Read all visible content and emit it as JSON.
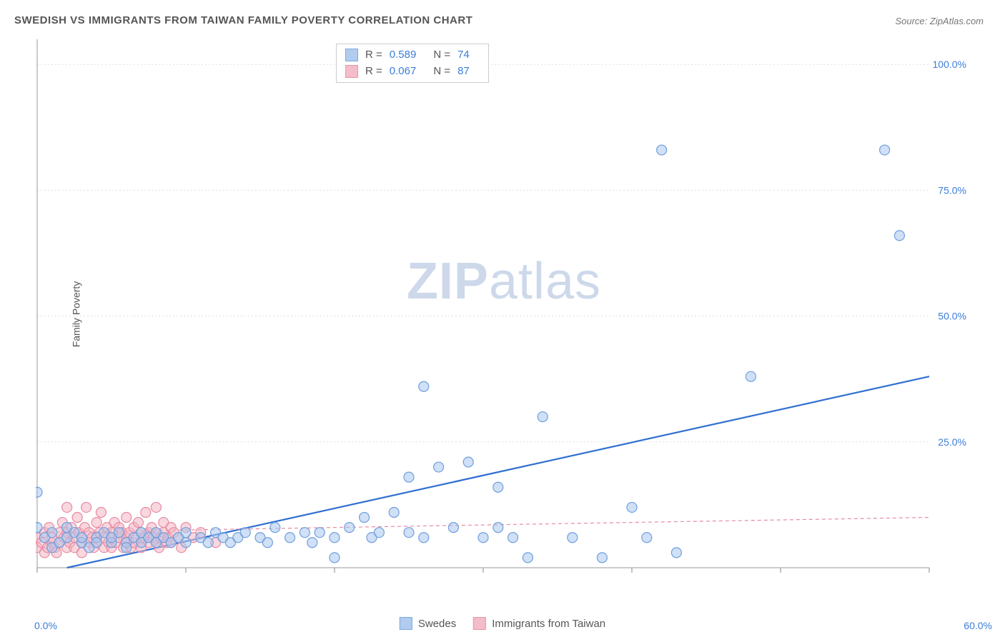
{
  "title": "SWEDISH VS IMMIGRANTS FROM TAIWAN FAMILY POVERTY CORRELATION CHART",
  "source": "Source: ZipAtlas.com",
  "watermark_bold": "ZIP",
  "watermark_light": "atlas",
  "y_axis_label": "Family Poverty",
  "chart": {
    "type": "scatter",
    "xlim": [
      0,
      60
    ],
    "ylim": [
      0,
      105
    ],
    "x_ticks": [
      0,
      10,
      20,
      30,
      40,
      50,
      60
    ],
    "y_gridlines": [
      25,
      50,
      75,
      100
    ],
    "y_tick_labels": [
      "25.0%",
      "50.0%",
      "75.0%",
      "100.0%"
    ],
    "x_start_label": "0.0%",
    "x_end_label": "60.0%",
    "background_color": "#ffffff",
    "grid_color": "#dddddd",
    "axis_color": "#999999",
    "tick_color": "#888888",
    "y_label_color": "#3b7dd8",
    "marker_radius": 7,
    "marker_stroke_width": 1.2,
    "series": [
      {
        "name": "Swedes",
        "fill": "#a9c7ee",
        "stroke": "#6f9fdc",
        "fill_opacity": 0.55,
        "R": "0.589",
        "N": "74",
        "trend": {
          "x1": 2,
          "y1": 0,
          "x2": 60,
          "y2": 38,
          "color": "#2f6fd0",
          "width": 2.2,
          "dash": "none"
        },
        "points": [
          [
            0,
            15
          ],
          [
            0,
            8
          ],
          [
            0.5,
            6
          ],
          [
            1,
            4
          ],
          [
            1,
            7
          ],
          [
            1.5,
            5
          ],
          [
            2,
            6
          ],
          [
            2,
            8
          ],
          [
            2.5,
            7
          ],
          [
            3,
            5
          ],
          [
            3,
            6
          ],
          [
            3.5,
            4
          ],
          [
            4,
            6
          ],
          [
            4,
            5
          ],
          [
            4.5,
            7
          ],
          [
            5,
            5
          ],
          [
            5,
            6
          ],
          [
            5.5,
            7
          ],
          [
            6,
            5
          ],
          [
            6,
            4
          ],
          [
            6.5,
            6
          ],
          [
            7,
            7
          ],
          [
            7,
            5
          ],
          [
            7.5,
            6
          ],
          [
            8,
            5
          ],
          [
            8,
            7
          ],
          [
            8.5,
            6
          ],
          [
            9,
            5
          ],
          [
            9.5,
            6
          ],
          [
            10,
            7
          ],
          [
            10,
            5
          ],
          [
            11,
            6
          ],
          [
            11.5,
            5
          ],
          [
            12,
            7
          ],
          [
            12.5,
            6
          ],
          [
            13,
            5
          ],
          [
            13.5,
            6
          ],
          [
            14,
            7
          ],
          [
            15,
            6
          ],
          [
            15.5,
            5
          ],
          [
            16,
            8
          ],
          [
            17,
            6
          ],
          [
            18,
            7
          ],
          [
            18.5,
            5
          ],
          [
            19,
            7
          ],
          [
            20,
            6
          ],
          [
            20,
            2
          ],
          [
            21,
            8
          ],
          [
            22,
            10
          ],
          [
            22.5,
            6
          ],
          [
            23,
            7
          ],
          [
            24,
            11
          ],
          [
            25,
            18
          ],
          [
            25,
            7
          ],
          [
            26,
            6
          ],
          [
            26,
            36
          ],
          [
            27,
            20
          ],
          [
            28,
            8
          ],
          [
            29,
            21
          ],
          [
            30,
            6
          ],
          [
            31,
            8
          ],
          [
            31,
            16
          ],
          [
            32,
            6
          ],
          [
            33,
            2
          ],
          [
            34,
            30
          ],
          [
            36,
            6
          ],
          [
            38,
            2
          ],
          [
            40,
            12
          ],
          [
            41,
            6
          ],
          [
            42,
            83
          ],
          [
            43,
            3
          ],
          [
            48,
            38
          ],
          [
            57,
            83
          ],
          [
            58,
            66
          ]
        ]
      },
      {
        "name": "Immigrants from Taiwan",
        "fill": "#f2b6c4",
        "stroke": "#e88aa0",
        "fill_opacity": 0.55,
        "R": "0.067",
        "N": "87",
        "trend": {
          "x1": 0,
          "y1": 7,
          "x2": 60,
          "y2": 10,
          "color": "#e88aa0",
          "width": 1.2,
          "dash": "5,4"
        },
        "points": [
          [
            0,
            4
          ],
          [
            0,
            6
          ],
          [
            0.3,
            5
          ],
          [
            0.5,
            3
          ],
          [
            0.5,
            7
          ],
          [
            0.7,
            4
          ],
          [
            0.8,
            8
          ],
          [
            1,
            5
          ],
          [
            1,
            6
          ],
          [
            1.2,
            4
          ],
          [
            1.3,
            3
          ],
          [
            1.5,
            7
          ],
          [
            1.5,
            5
          ],
          [
            1.7,
            9
          ],
          [
            1.8,
            6
          ],
          [
            2,
            4
          ],
          [
            2,
            7
          ],
          [
            2,
            12
          ],
          [
            2.2,
            5
          ],
          [
            2.3,
            8
          ],
          [
            2.5,
            6
          ],
          [
            2.5,
            4
          ],
          [
            2.7,
            10
          ],
          [
            2.8,
            7
          ],
          [
            3,
            5
          ],
          [
            3,
            6
          ],
          [
            3,
            3
          ],
          [
            3.2,
            8
          ],
          [
            3.3,
            12
          ],
          [
            3.5,
            7
          ],
          [
            3.5,
            5
          ],
          [
            3.7,
            6
          ],
          [
            3.8,
            4
          ],
          [
            4,
            9
          ],
          [
            4,
            6
          ],
          [
            4,
            5
          ],
          [
            4.2,
            7
          ],
          [
            4.3,
            11
          ],
          [
            4.5,
            6
          ],
          [
            4.5,
            4
          ],
          [
            4.7,
            8
          ],
          [
            4.8,
            5
          ],
          [
            5,
            7
          ],
          [
            5,
            6
          ],
          [
            5,
            4
          ],
          [
            5.2,
            9
          ],
          [
            5.3,
            5
          ],
          [
            5.5,
            8
          ],
          [
            5.5,
            6
          ],
          [
            5.7,
            7
          ],
          [
            5.8,
            4
          ],
          [
            6,
            10
          ],
          [
            6,
            6
          ],
          [
            6,
            5
          ],
          [
            6.2,
            7
          ],
          [
            6.3,
            4
          ],
          [
            6.5,
            8
          ],
          [
            6.5,
            5
          ],
          [
            6.7,
            6
          ],
          [
            6.8,
            9
          ],
          [
            7,
            7
          ],
          [
            7,
            5
          ],
          [
            7,
            4
          ],
          [
            7.2,
            6
          ],
          [
            7.3,
            11
          ],
          [
            7.5,
            7
          ],
          [
            7.5,
            5
          ],
          [
            7.7,
            8
          ],
          [
            7.8,
            6
          ],
          [
            8,
            12
          ],
          [
            8,
            5
          ],
          [
            8,
            7
          ],
          [
            8.2,
            4
          ],
          [
            8.3,
            6
          ],
          [
            8.5,
            9
          ],
          [
            8.5,
            7
          ],
          [
            8.7,
            5
          ],
          [
            8.8,
            6
          ],
          [
            9,
            8
          ],
          [
            9,
            5
          ],
          [
            9.2,
            7
          ],
          [
            9.5,
            6
          ],
          [
            9.7,
            4
          ],
          [
            10,
            8
          ],
          [
            10.5,
            6
          ],
          [
            11,
            7
          ],
          [
            12,
            5
          ]
        ]
      }
    ]
  },
  "legend": {
    "swedes_label": "Swedes",
    "taiwan_label": "Immigrants from Taiwan"
  },
  "stats_labels": {
    "R": "R =",
    "N": "N ="
  }
}
